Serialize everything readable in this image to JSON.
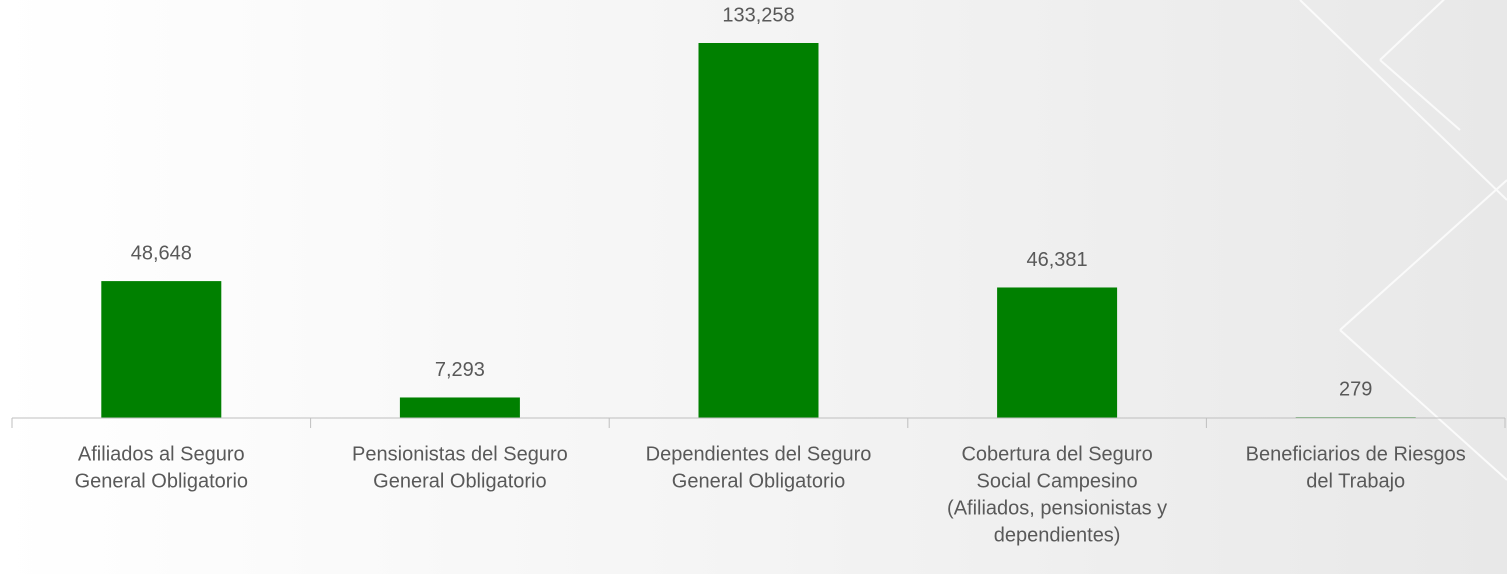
{
  "chart_data": {
    "type": "bar",
    "categories": [
      [
        "Afiliados al Seguro",
        "General Obligatorio"
      ],
      [
        "Pensionistas del Seguro",
        "General Obligatorio"
      ],
      [
        "Dependientes del Seguro",
        "General Obligatorio"
      ],
      [
        "Cobertura del Seguro",
        "Social Campesino",
        "(Afiliados, pensionistas y",
        "dependientes)"
      ],
      [
        "Beneficiarios de Riesgos",
        "del Trabajo"
      ]
    ],
    "values": [
      48648,
      7293,
      133258,
      46381,
      279
    ],
    "value_labels": [
      "48,648",
      "7,293",
      "133,258",
      "46,381",
      "279"
    ],
    "color": "#008000"
  }
}
